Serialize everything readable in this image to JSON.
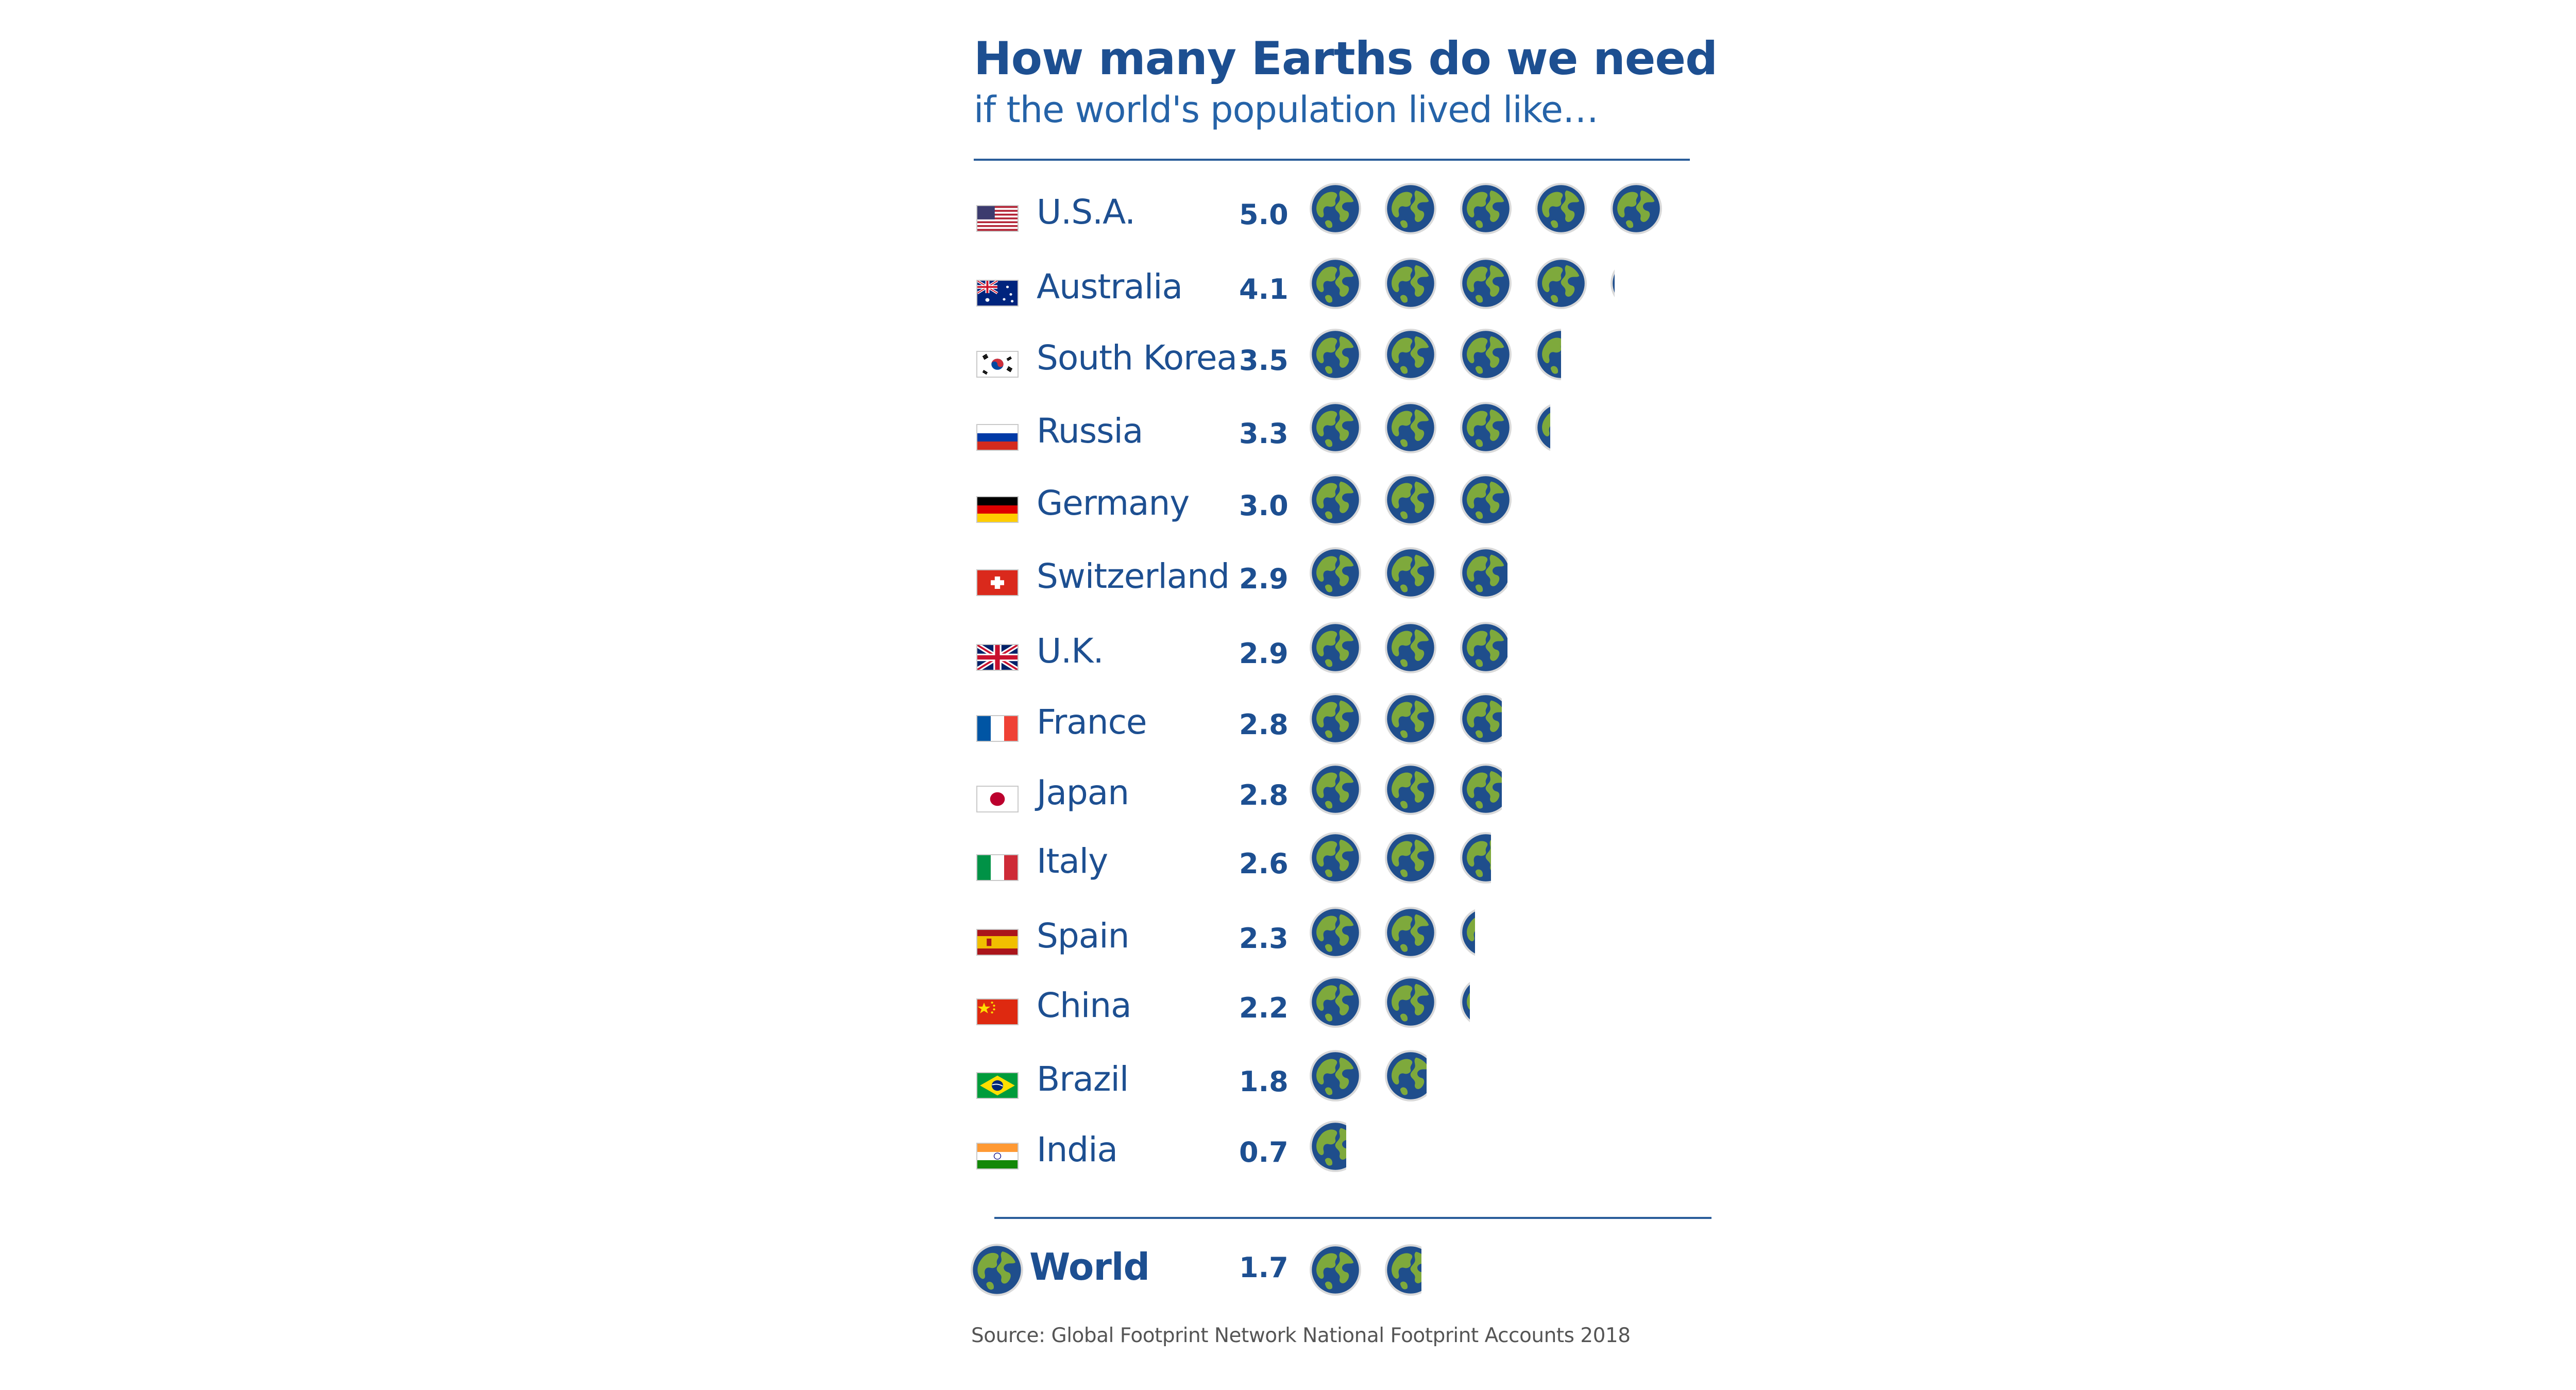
{
  "header": {
    "title": "How many Earths do we need",
    "subtitle": "if the world's population lived like…"
  },
  "footer": {
    "source": "Source: Global Footprint Network National Footprint Accounts 2018"
  },
  "colors": {
    "text_blue": "#1d4f91",
    "rule_blue": "#2a5d9a",
    "ocean": "#1f4e8c",
    "land": "#7ea93c",
    "globe_rim": "#d9d9d9"
  },
  "chart_data": {
    "type": "bar",
    "unit_icon": "earth-globe-icon",
    "categories": [
      "U.S.A.",
      "Australia",
      "South Korea",
      "Russia",
      "Germany",
      "Switzerland",
      "U.K.",
      "France",
      "Japan",
      "Italy",
      "Spain",
      "China",
      "Brazil",
      "India",
      "World"
    ],
    "values": [
      5.0,
      4.1,
      3.5,
      3.3,
      3.0,
      2.9,
      2.9,
      2.8,
      2.8,
      2.6,
      2.3,
      2.2,
      1.8,
      0.7,
      1.7
    ],
    "value_labels": [
      "5.0",
      "4.1",
      "3.5",
      "3.3",
      "3.0",
      "2.9",
      "2.9",
      "2.8",
      "2.8",
      "2.6",
      "2.3",
      "2.2",
      "1.8",
      "0.7",
      "1.7"
    ],
    "flags": [
      "flag-usa",
      "flag-australia",
      "flag-south-korea",
      "flag-russia",
      "flag-germany",
      "flag-switzerland",
      "flag-uk",
      "flag-france",
      "flag-japan",
      "flag-italy",
      "flag-spain",
      "flag-china",
      "flag-brazil",
      "flag-india",
      "earth-globe-icon"
    ]
  }
}
